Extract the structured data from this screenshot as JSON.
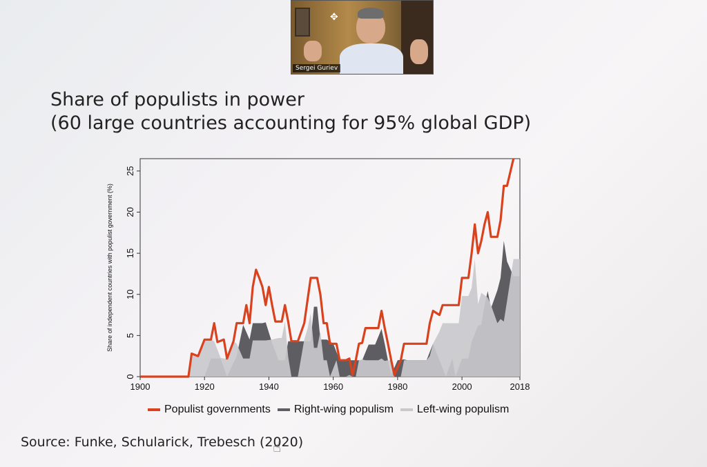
{
  "video": {
    "participant_name": "Sergei Guriev",
    "move_icon": "move-icon"
  },
  "slide": {
    "title_line1": "Share of populists in power",
    "title_line2": "(60 large countries accounting for 95% global GDP)",
    "source": "Source: Funke, Schularick, Trebesch (2020)"
  },
  "colors": {
    "populist_line": "#d9421e",
    "right_wing": "#5d5d62",
    "left_wing": "#c9c9cc"
  },
  "chart_data": {
    "type": "area",
    "title": "",
    "xlabel": "",
    "ylabel": "Share of independent countries with populist government (%)",
    "xlim": [
      1900,
      2018
    ],
    "ylim": [
      0,
      26.5
    ],
    "xticks": [
      1900,
      1920,
      1940,
      1960,
      1980,
      2000,
      2018
    ],
    "yticks": [
      0,
      5,
      10,
      15,
      20,
      25
    ],
    "legend_position": "bottom",
    "grid": false,
    "series": [
      {
        "name": "Populist governments",
        "style": "line",
        "points": [
          [
            1900,
            0
          ],
          [
            1915,
            0
          ],
          [
            1916,
            2.8
          ],
          [
            1918,
            2.5
          ],
          [
            1920,
            4.5
          ],
          [
            1922,
            4.5
          ],
          [
            1923,
            6.5
          ],
          [
            1924,
            4.2
          ],
          [
            1926,
            4.5
          ],
          [
            1927,
            2.2
          ],
          [
            1929,
            4.3
          ],
          [
            1930,
            6.5
          ],
          [
            1932,
            6.5
          ],
          [
            1933,
            8.7
          ],
          [
            1934,
            6.5
          ],
          [
            1935,
            10.9
          ],
          [
            1936,
            13
          ],
          [
            1937,
            12
          ],
          [
            1938,
            10.9
          ],
          [
            1939,
            8.7
          ],
          [
            1940,
            10.9
          ],
          [
            1941,
            8.7
          ],
          [
            1942,
            6.7
          ],
          [
            1944,
            6.7
          ],
          [
            1945,
            8.7
          ],
          [
            1946,
            6.7
          ],
          [
            1947,
            4.3
          ],
          [
            1949,
            4.3
          ],
          [
            1951,
            6.5
          ],
          [
            1952,
            9.3
          ],
          [
            1953,
            12
          ],
          [
            1955,
            12
          ],
          [
            1956,
            10
          ],
          [
            1957,
            6.5
          ],
          [
            1958,
            6.5
          ],
          [
            1959,
            4
          ],
          [
            1961,
            4
          ],
          [
            1962,
            2
          ],
          [
            1964,
            2
          ],
          [
            1965,
            2.2
          ],
          [
            1966,
            0.2
          ],
          [
            1967,
            2
          ],
          [
            1968,
            4
          ],
          [
            1969,
            4.1
          ],
          [
            1970,
            5.9
          ],
          [
            1973,
            5.9
          ],
          [
            1974,
            5.9
          ],
          [
            1975,
            8
          ],
          [
            1976,
            5.9
          ],
          [
            1977,
            4
          ],
          [
            1978,
            2
          ],
          [
            1979,
            0.2
          ],
          [
            1981,
            2
          ],
          [
            1982,
            4
          ],
          [
            1989,
            4
          ],
          [
            1990,
            6.5
          ],
          [
            1991,
            8
          ],
          [
            1993,
            7.5
          ],
          [
            1994,
            8.7
          ],
          [
            1999,
            8.7
          ],
          [
            2000,
            12
          ],
          [
            2002,
            12
          ],
          [
            2003,
            15
          ],
          [
            2004,
            18.5
          ],
          [
            2005,
            15
          ],
          [
            2006,
            16.5
          ],
          [
            2007,
            18.5
          ],
          [
            2008,
            20
          ],
          [
            2009,
            17
          ],
          [
            2011,
            17
          ],
          [
            2012,
            19
          ],
          [
            2013,
            23.2
          ],
          [
            2014,
            23.2
          ],
          [
            2016,
            26.5
          ]
        ]
      },
      {
        "name": "Right-wing populism",
        "style": "area",
        "points": [
          [
            1900,
            0
          ],
          [
            1915,
            0
          ],
          [
            1916,
            0
          ],
          [
            1920,
            0
          ],
          [
            1922,
            2.2
          ],
          [
            1925,
            2.2
          ],
          [
            1927,
            0
          ],
          [
            1930,
            2.5
          ],
          [
            1932,
            6.3
          ],
          [
            1934,
            4.5
          ],
          [
            1935,
            6.5
          ],
          [
            1938,
            6.5
          ],
          [
            1939,
            6.6
          ],
          [
            1941,
            4.1
          ],
          [
            1943,
            2
          ],
          [
            1945,
            2
          ],
          [
            1946,
            4.3
          ],
          [
            1953,
            4.3
          ],
          [
            1954,
            8.5
          ],
          [
            1955,
            8.5
          ],
          [
            1956,
            4.5
          ],
          [
            1958,
            4.5
          ],
          [
            1960,
            4
          ],
          [
            1962,
            2
          ],
          [
            1964,
            2
          ],
          [
            1967,
            2
          ],
          [
            1968,
            2
          ],
          [
            1969,
            2
          ],
          [
            1971,
            3.9
          ],
          [
            1973,
            3.9
          ],
          [
            1975,
            5.8
          ],
          [
            1976,
            4
          ],
          [
            1977,
            2
          ],
          [
            1978,
            0.2
          ],
          [
            1980,
            2
          ],
          [
            1982,
            2.1
          ],
          [
            1983,
            2
          ],
          [
            1989,
            2
          ],
          [
            1991,
            4
          ],
          [
            1993,
            2
          ],
          [
            1995,
            0
          ],
          [
            1997,
            2.2
          ],
          [
            1998,
            0
          ],
          [
            2000,
            2.2
          ],
          [
            2002,
            2.2
          ],
          [
            2003,
            4.2
          ],
          [
            2005,
            6.2
          ],
          [
            2006,
            6.3
          ],
          [
            2007,
            8.6
          ],
          [
            2008,
            10.4
          ],
          [
            2009,
            8.3
          ],
          [
            2011,
            10.5
          ],
          [
            2012,
            12
          ],
          [
            2013,
            16.5
          ],
          [
            2014,
            14
          ],
          [
            2016,
            12.2
          ],
          [
            2018,
            12.2
          ]
        ]
      },
      {
        "name": "Left-wing populism",
        "style": "area",
        "points": [
          [
            1900,
            0
          ],
          [
            1915,
            0
          ],
          [
            1916,
            2.8
          ],
          [
            1918,
            2.5
          ],
          [
            1920,
            4.5
          ],
          [
            1922,
            4.5
          ],
          [
            1923,
            4.3
          ],
          [
            1925,
            2.3
          ],
          [
            1926,
            2.2
          ],
          [
            1927,
            2.2
          ],
          [
            1929,
            4.3
          ],
          [
            1930,
            4
          ],
          [
            1932,
            2.2
          ],
          [
            1933,
            2.2
          ],
          [
            1934,
            2.2
          ],
          [
            1935,
            4.4
          ],
          [
            1938,
            4.4
          ],
          [
            1939,
            4.4
          ],
          [
            1941,
            4.5
          ],
          [
            1943,
            4.7
          ],
          [
            1944,
            4.7
          ],
          [
            1945,
            6.7
          ],
          [
            1946,
            2.4
          ],
          [
            1947,
            0
          ],
          [
            1949,
            0
          ],
          [
            1951,
            4.5
          ],
          [
            1952,
            5.8
          ],
          [
            1953,
            7.7
          ],
          [
            1954,
            3.5
          ],
          [
            1955,
            3.5
          ],
          [
            1956,
            5.5
          ],
          [
            1957,
            2
          ],
          [
            1958,
            2
          ],
          [
            1959,
            0
          ],
          [
            1961,
            2
          ],
          [
            1962,
            0
          ],
          [
            1964,
            0
          ],
          [
            1965,
            0.2
          ],
          [
            1966,
            0
          ],
          [
            1967,
            0
          ],
          [
            1968,
            2
          ],
          [
            1969,
            2.1
          ],
          [
            1970,
            2
          ],
          [
            1973,
            2
          ],
          [
            1974,
            2
          ],
          [
            1975,
            2.2
          ],
          [
            1976,
            1.9
          ],
          [
            1977,
            2
          ],
          [
            1978,
            2
          ],
          [
            1979,
            0
          ],
          [
            1981,
            0
          ],
          [
            1982,
            2
          ],
          [
            1989,
            2
          ],
          [
            1990,
            2.5
          ],
          [
            1991,
            4
          ],
          [
            1993,
            5.5
          ],
          [
            1994,
            6.5
          ],
          [
            1999,
            6.5
          ],
          [
            2000,
            9.8
          ],
          [
            2002,
            9.8
          ],
          [
            2003,
            10.8
          ],
          [
            2004,
            14.3
          ],
          [
            2005,
            8.8
          ],
          [
            2006,
            10.2
          ],
          [
            2007,
            9.9
          ],
          [
            2008,
            9.6
          ],
          [
            2009,
            8.7
          ],
          [
            2011,
            6.5
          ],
          [
            2012,
            7
          ],
          [
            2013,
            6.7
          ],
          [
            2014,
            9.2
          ],
          [
            2016,
            14.3
          ],
          [
            2018,
            14.3
          ]
        ]
      }
    ]
  },
  "legend": {
    "populist": "Populist governments",
    "right": "Right-wing populism",
    "left": "Left-wing populism"
  }
}
